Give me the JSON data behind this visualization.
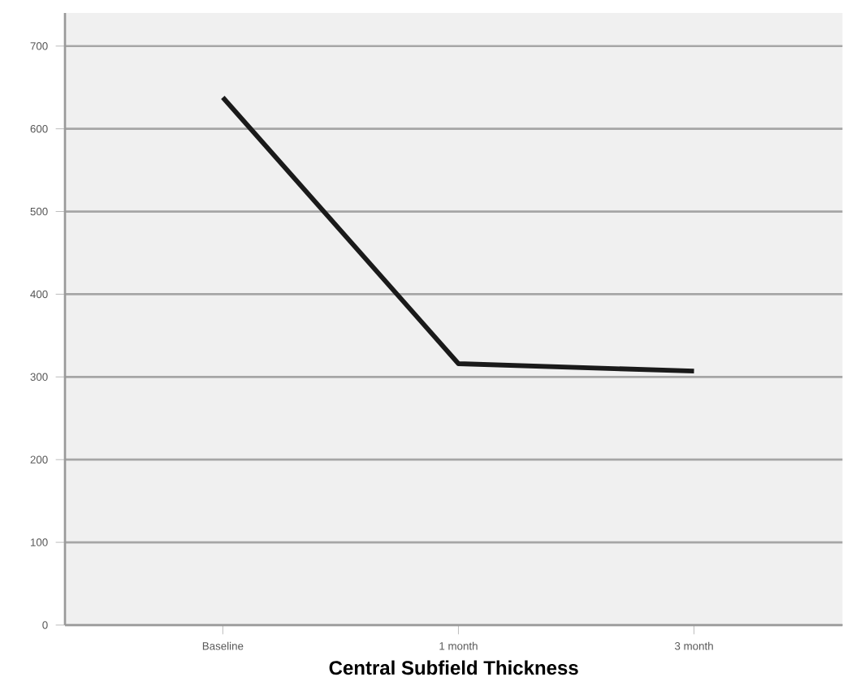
{
  "chart_data": {
    "type": "line",
    "xlabel": "Central Subfield Thickness",
    "categories": [
      "Baseline",
      "1 month",
      "3 month"
    ],
    "series": [
      {
        "color": "#1a1a1a",
        "values": [
          638,
          316,
          307
        ]
      }
    ],
    "ylim": [
      0,
      740
    ],
    "yticks": [
      0,
      100,
      200,
      300,
      400,
      500,
      600,
      700
    ],
    "grid": "y",
    "marker": "none",
    "line_style": "solid"
  }
}
